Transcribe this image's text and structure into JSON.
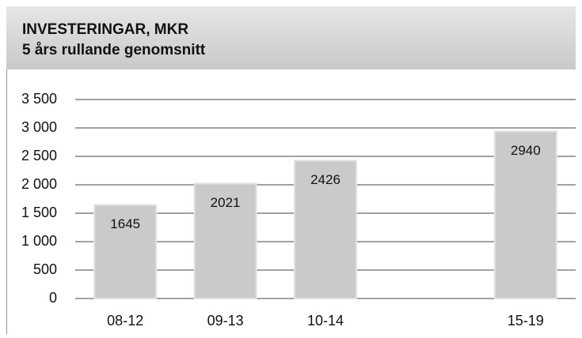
{
  "chart_data": {
    "type": "bar",
    "title": "INVESTERINGAR, MKR",
    "subtitle": "5 års rullande genomsnitt",
    "categories": [
      "08-12",
      "09-13",
      "10-14",
      null,
      "15-19"
    ],
    "values": [
      1645,
      2021,
      2426,
      null,
      2940
    ],
    "color": "#c9cbc9",
    "ylim": [
      0,
      3500
    ],
    "yticks": [
      0,
      500,
      {
        "value": 1000,
        "label": "1 000"
      },
      {
        "value": 1500,
        "label": "1 500"
      },
      {
        "value": 2000,
        "label": "2 000"
      },
      {
        "value": 2500,
        "label": "2 500"
      },
      {
        "value": 3000,
        "label": "3 000"
      },
      {
        "value": 3500,
        "label": "3 500"
      }
    ],
    "grid": true
  }
}
